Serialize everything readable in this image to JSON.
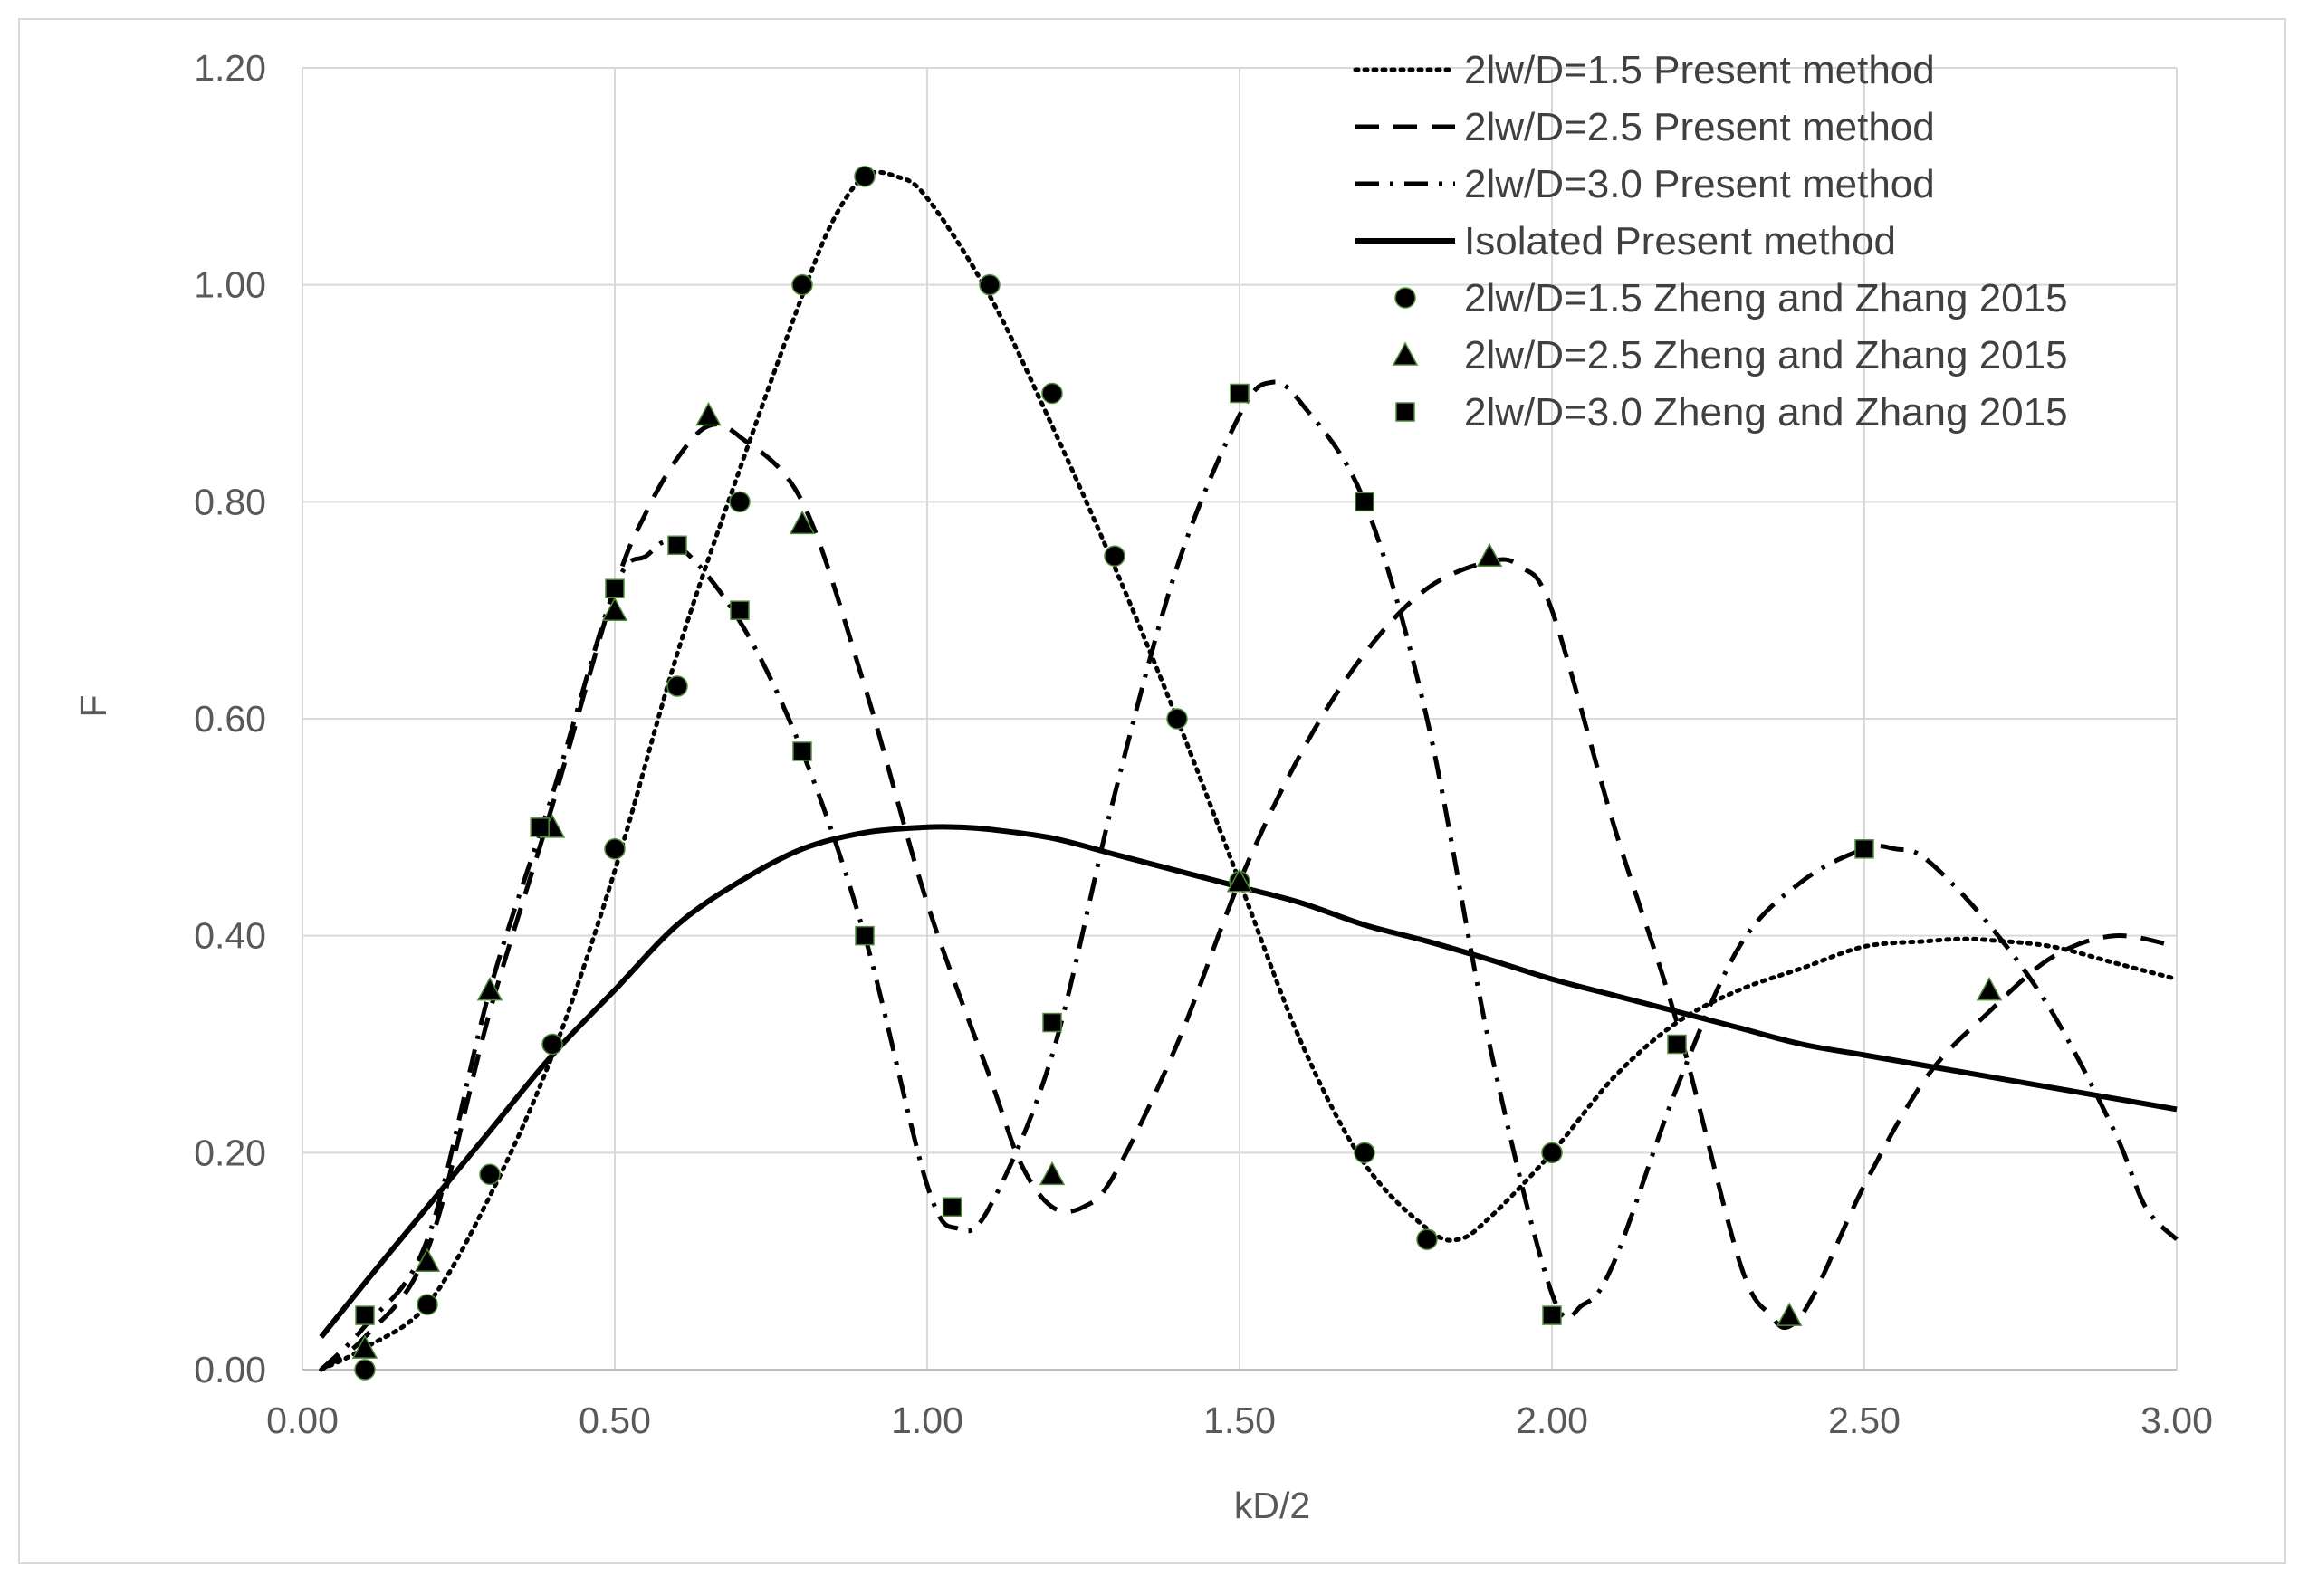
{
  "chart_data": {
    "type": "line",
    "title": "",
    "xlabel": "kD/2",
    "ylabel": "F",
    "xlim": [
      0,
      3.0
    ],
    "ylim": [
      0,
      1.2
    ],
    "x_ticks": [
      "0.00",
      "0.50",
      "1.00",
      "1.50",
      "2.00",
      "2.50",
      "3.00"
    ],
    "y_ticks": [
      "0.00",
      "0.20",
      "0.40",
      "0.60",
      "0.80",
      "1.00",
      "1.20"
    ],
    "grid": true,
    "legend_position": "top-right",
    "series": [
      {
        "name": "2lw/D=1.5 Present method",
        "kind": "line",
        "style": "dotted",
        "x": [
          0.03,
          0.1,
          0.2,
          0.3,
          0.4,
          0.5,
          0.6,
          0.7,
          0.8,
          0.85,
          0.9,
          0.95,
          1.0,
          1.1,
          1.2,
          1.3,
          1.4,
          1.5,
          1.6,
          1.7,
          1.8,
          1.85,
          1.9,
          2.0,
          2.1,
          2.2,
          2.3,
          2.4,
          2.5,
          2.6,
          2.65,
          2.7,
          2.8,
          2.9,
          3.0
        ],
        "y": [
          0.0,
          0.02,
          0.06,
          0.16,
          0.29,
          0.46,
          0.66,
          0.83,
          0.99,
          1.06,
          1.1,
          1.1,
          1.08,
          0.99,
          0.87,
          0.74,
          0.6,
          0.45,
          0.3,
          0.19,
          0.13,
          0.12,
          0.14,
          0.2,
          0.27,
          0.32,
          0.35,
          0.37,
          0.39,
          0.395,
          0.397,
          0.396,
          0.39,
          0.375,
          0.36
        ]
      },
      {
        "name": "2lw/D=2.5 Present method",
        "kind": "line",
        "style": "dashed",
        "x": [
          0.03,
          0.1,
          0.2,
          0.3,
          0.4,
          0.5,
          0.55,
          0.6,
          0.65,
          0.7,
          0.8,
          0.9,
          1.0,
          1.1,
          1.15,
          1.2,
          1.25,
          1.3,
          1.4,
          1.5,
          1.6,
          1.7,
          1.8,
          1.9,
          1.95,
          2.0,
          2.1,
          2.2,
          2.3,
          2.35,
          2.38,
          2.42,
          2.5,
          2.6,
          2.7,
          2.8,
          2.9,
          3.0
        ],
        "y": [
          0.0,
          0.03,
          0.11,
          0.33,
          0.52,
          0.72,
          0.79,
          0.84,
          0.87,
          0.86,
          0.8,
          0.63,
          0.43,
          0.27,
          0.19,
          0.15,
          0.15,
          0.18,
          0.3,
          0.45,
          0.57,
          0.66,
          0.72,
          0.745,
          0.74,
          0.7,
          0.5,
          0.32,
          0.1,
          0.05,
          0.04,
          0.07,
          0.17,
          0.27,
          0.33,
          0.38,
          0.4,
          0.39
        ]
      },
      {
        "name": "2lw/D=3.0 Present method",
        "kind": "line",
        "style": "dashdot",
        "x": [
          0.03,
          0.1,
          0.2,
          0.3,
          0.4,
          0.5,
          0.55,
          0.6,
          0.7,
          0.8,
          0.9,
          1.0,
          1.05,
          1.1,
          1.2,
          1.3,
          1.4,
          1.5,
          1.55,
          1.6,
          1.7,
          1.8,
          1.9,
          2.0,
          2.05,
          2.1,
          2.2,
          2.3,
          2.4,
          2.5,
          2.55,
          2.6,
          2.7,
          2.8,
          2.9,
          2.95,
          3.0
        ],
        "y": [
          0.0,
          0.04,
          0.12,
          0.35,
          0.53,
          0.72,
          0.75,
          0.76,
          0.69,
          0.57,
          0.4,
          0.17,
          0.13,
          0.15,
          0.29,
          0.53,
          0.74,
          0.88,
          0.91,
          0.89,
          0.8,
          0.6,
          0.3,
          0.07,
          0.06,
          0.1,
          0.26,
          0.39,
          0.45,
          0.48,
          0.48,
          0.47,
          0.41,
          0.33,
          0.22,
          0.15,
          0.12
        ]
      },
      {
        "name": "Isolated Present method",
        "kind": "line",
        "style": "solid",
        "x": [
          0.03,
          0.1,
          0.2,
          0.3,
          0.4,
          0.5,
          0.6,
          0.7,
          0.8,
          0.9,
          1.0,
          1.05,
          1.1,
          1.2,
          1.3,
          1.4,
          1.5,
          1.6,
          1.7,
          1.8,
          1.9,
          2.0,
          2.1,
          2.2,
          2.3,
          2.4,
          2.5,
          2.6,
          2.7,
          2.8,
          2.9,
          3.0
        ],
        "y": [
          0.03,
          0.08,
          0.15,
          0.22,
          0.29,
          0.35,
          0.41,
          0.45,
          0.48,
          0.495,
          0.5,
          0.5,
          0.498,
          0.49,
          0.475,
          0.46,
          0.445,
          0.43,
          0.41,
          0.395,
          0.378,
          0.36,
          0.345,
          0.33,
          0.315,
          0.3,
          0.29,
          0.28,
          0.27,
          0.26,
          0.25,
          0.24
        ]
      },
      {
        "name": "2lw/D=1.5 Zheng and Zhang 2015",
        "kind": "marker",
        "marker": "circle",
        "x": [
          0.1,
          0.2,
          0.3,
          0.4,
          0.5,
          0.6,
          0.7,
          0.8,
          0.9,
          1.1,
          1.2,
          1.3,
          1.4,
          1.5,
          1.7,
          1.8,
          2.0
        ],
        "y": [
          0.0,
          0.06,
          0.18,
          0.3,
          0.48,
          0.63,
          0.8,
          1.0,
          1.1,
          1.0,
          0.9,
          0.75,
          0.6,
          0.45,
          0.2,
          0.12,
          0.2
        ]
      },
      {
        "name": "2lw/D=2.5 Zheng and Zhang 2015",
        "kind": "marker",
        "marker": "triangle",
        "x": [
          0.1,
          0.2,
          0.3,
          0.4,
          0.5,
          0.65,
          0.8,
          1.2,
          1.5,
          1.9,
          2.38,
          2.7
        ],
        "y": [
          0.02,
          0.1,
          0.35,
          0.5,
          0.7,
          0.88,
          0.78,
          0.18,
          0.45,
          0.75,
          0.05,
          0.35
        ]
      },
      {
        "name": "2lw/D=3.0 Zheng and Zhang 2015",
        "kind": "marker",
        "marker": "square",
        "x": [
          0.1,
          0.38,
          0.5,
          0.6,
          0.7,
          0.8,
          0.9,
          1.04,
          1.2,
          1.5,
          1.7,
          2.0,
          2.2,
          2.5
        ],
        "y": [
          0.05,
          0.5,
          0.72,
          0.76,
          0.7,
          0.57,
          0.4,
          0.15,
          0.32,
          0.9,
          0.8,
          0.05,
          0.3,
          0.48
        ]
      }
    ]
  }
}
